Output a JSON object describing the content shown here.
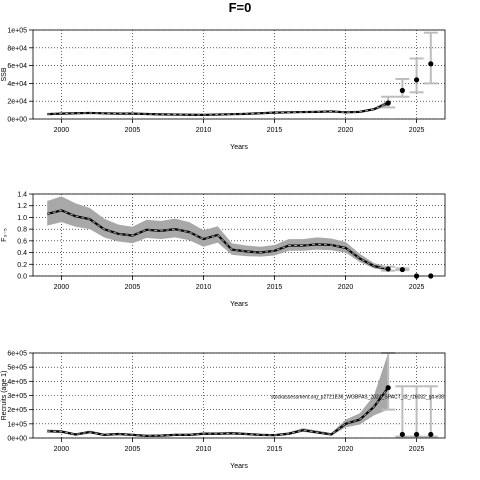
{
  "figure": {
    "title": "F=0"
  },
  "chart_data": [
    {
      "type": "line",
      "title": "",
      "xlabel": "Years",
      "ylabel": "SSB",
      "xlim": [
        1998,
        2027
      ],
      "ylim": [
        0,
        100000
      ],
      "xticks": [
        2000,
        2005,
        2010,
        2015,
        2020,
        2025
      ],
      "xtick_labels": [
        "2000",
        "2005",
        "2010",
        "2015",
        "2020",
        "2025"
      ],
      "yticks": [
        0,
        20000,
        40000,
        60000,
        80000,
        100000
      ],
      "ytick_labels": [
        "0e+00",
        "2e+04",
        "4e+04",
        "6e+04",
        "8e+04",
        "1e+05"
      ],
      "grid": true,
      "series": [
        {
          "kind": "estimate",
          "x": [
            1999,
            2000,
            2001,
            2002,
            2003,
            2004,
            2005,
            2006,
            2007,
            2008,
            2009,
            2010,
            2011,
            2012,
            2013,
            2014,
            2015,
            2016,
            2017,
            2018,
            2019,
            2020,
            2021,
            2022,
            2023
          ],
          "y": [
            5500,
            6000,
            6500,
            6800,
            6400,
            6000,
            6000,
            5600,
            5200,
            5000,
            4800,
            4600,
            5000,
            5400,
            5800,
            6500,
            7200,
            7500,
            7800,
            8000,
            8500,
            7500,
            8000,
            11000,
            18000
          ],
          "lower": [
            4800,
            5200,
            5600,
            5800,
            5500,
            5200,
            5200,
            4900,
            4600,
            4400,
            4200,
            4000,
            4400,
            4800,
            5100,
            5700,
            6300,
            6600,
            6900,
            7000,
            7400,
            6600,
            7000,
            9500,
            15000
          ],
          "upper": [
            6300,
            6800,
            7400,
            7800,
            7300,
            6800,
            6800,
            6300,
            5800,
            5600,
            5400,
            5200,
            5600,
            6000,
            6500,
            7300,
            8100,
            8400,
            8700,
            9000,
            9600,
            8400,
            9000,
            12500,
            21000
          ]
        },
        {
          "kind": "projection",
          "x": [
            2023,
            2024,
            2025,
            2026
          ],
          "y": [
            18000,
            32000,
            44000,
            62000
          ],
          "lower": [
            13000,
            25000,
            30000,
            40000
          ],
          "upper": [
            25000,
            45000,
            68000,
            97000
          ]
        }
      ]
    },
    {
      "type": "line",
      "title": "",
      "xlabel": "Years",
      "ylabel": "F₃₋₅",
      "xlim": [
        1998,
        2027
      ],
      "ylim": [
        0,
        1.4
      ],
      "xticks": [
        2000,
        2005,
        2010,
        2015,
        2020,
        2025
      ],
      "xtick_labels": [
        "2000",
        "2005",
        "2010",
        "2015",
        "2020",
        "2025"
      ],
      "yticks": [
        0,
        0.2,
        0.4,
        0.6,
        0.8,
        1.0,
        1.2,
        1.4
      ],
      "ytick_labels": [
        "0.0",
        "0.2",
        "0.4",
        "0.6",
        "0.8",
        "1.0",
        "1.2",
        "1.4"
      ],
      "grid": true,
      "series": [
        {
          "kind": "estimate",
          "x": [
            1999,
            2000,
            2001,
            2002,
            2003,
            2004,
            2005,
            2006,
            2007,
            2008,
            2009,
            2010,
            2011,
            2012,
            2013,
            2014,
            2015,
            2016,
            2017,
            2018,
            2019,
            2020,
            2021,
            2022,
            2023
          ],
          "y": [
            1.06,
            1.12,
            1.02,
            0.97,
            0.8,
            0.72,
            0.69,
            0.79,
            0.77,
            0.8,
            0.75,
            0.63,
            0.7,
            0.45,
            0.42,
            0.4,
            0.43,
            0.52,
            0.52,
            0.54,
            0.53,
            0.48,
            0.3,
            0.17,
            0.12
          ],
          "lower": [
            0.86,
            0.92,
            0.84,
            0.8,
            0.66,
            0.59,
            0.56,
            0.65,
            0.63,
            0.66,
            0.61,
            0.5,
            0.57,
            0.36,
            0.34,
            0.33,
            0.35,
            0.43,
            0.43,
            0.45,
            0.44,
            0.4,
            0.24,
            0.13,
            0.09
          ],
          "upper": [
            1.28,
            1.36,
            1.24,
            1.16,
            0.98,
            0.88,
            0.84,
            0.96,
            0.94,
            0.98,
            0.92,
            0.78,
            0.85,
            0.56,
            0.52,
            0.5,
            0.53,
            0.63,
            0.63,
            0.66,
            0.64,
            0.58,
            0.38,
            0.22,
            0.16
          ]
        },
        {
          "kind": "projection",
          "x": [
            2023,
            2024,
            2025,
            2026
          ],
          "y": [
            0.12,
            0.11,
            0.0,
            0.0
          ],
          "lower": [
            0.09,
            0.1,
            0.0,
            0.0
          ],
          "upper": [
            0.16,
            0.13,
            0.0,
            0.0
          ]
        }
      ]
    },
    {
      "type": "line",
      "title": "",
      "xlabel": "Years",
      "ylabel": "Recruits (age 1)",
      "xlim": [
        1998,
        2027
      ],
      "ylim": [
        0,
        600000
      ],
      "xticks": [
        2000,
        2005,
        2010,
        2015,
        2020,
        2025
      ],
      "xtick_labels": [
        "2000",
        "2005",
        "2010",
        "2015",
        "2020",
        "2025"
      ],
      "yticks": [
        0,
        100000,
        200000,
        300000,
        400000,
        500000,
        600000
      ],
      "ytick_labels": [
        "0e+00",
        "1e+05",
        "2e+05",
        "3e+05",
        "4e+05",
        "5e+05",
        "6e+05"
      ],
      "grid": true,
      "annotation": "stockassessment.org_p2721E36_WGBFAS_2024_SPACT_t3_r16032_git-e38",
      "series": [
        {
          "kind": "estimate",
          "x": [
            1999,
            2000,
            2001,
            2002,
            2003,
            2004,
            2005,
            2006,
            2007,
            2008,
            2009,
            2010,
            2011,
            2012,
            2013,
            2014,
            2015,
            2016,
            2017,
            2018,
            2019,
            2020,
            2021,
            2022,
            2023
          ],
          "y": [
            48000,
            45000,
            25000,
            42000,
            22000,
            28000,
            22000,
            15000,
            17000,
            22000,
            22000,
            30000,
            30000,
            33000,
            28000,
            22000,
            20000,
            30000,
            55000,
            40000,
            25000,
            100000,
            130000,
            220000,
            355000
          ],
          "lower": [
            38000,
            36000,
            18000,
            33000,
            15000,
            20000,
            15000,
            9000,
            11000,
            15000,
            15000,
            22000,
            22000,
            24000,
            20000,
            15000,
            13000,
            22000,
            43000,
            30000,
            17000,
            75000,
            95000,
            160000,
            200000
          ],
          "upper": [
            60000,
            56000,
            33000,
            52000,
            30000,
            36000,
            30000,
            22000,
            24000,
            30000,
            30000,
            40000,
            40000,
            43000,
            37000,
            30000,
            28000,
            40000,
            70000,
            52000,
            35000,
            130000,
            175000,
            300000,
            600000
          ]
        },
        {
          "kind": "projection",
          "x": [
            2023,
            2024,
            2025,
            2026
          ],
          "y": [
            355000,
            25000,
            25000,
            25000
          ],
          "lower": [
            200000,
            10000,
            10000,
            10000
          ],
          "upper": [
            600000,
            365000,
            365000,
            365000
          ]
        }
      ]
    }
  ]
}
